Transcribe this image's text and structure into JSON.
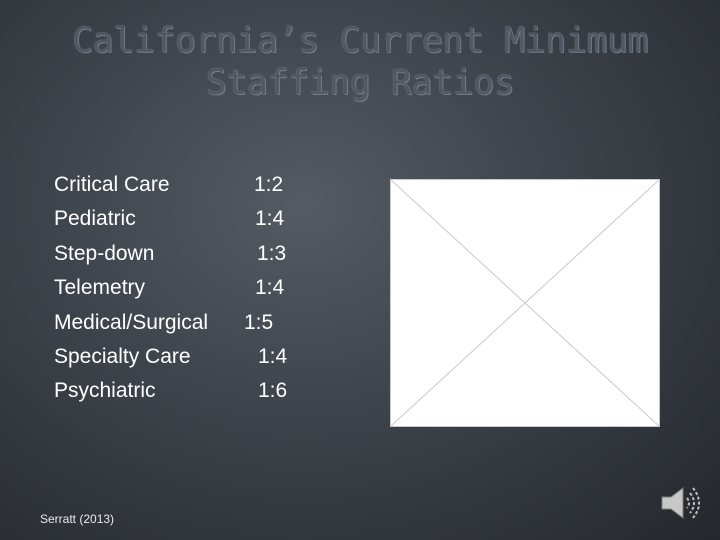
{
  "slide": {
    "title_line1": "California’s Current Minimum",
    "title_line2": "Staffing Ratios",
    "ratios": [
      {
        "unit": "Critical Care",
        "ratio": "1:2"
      },
      {
        "unit": "Pediatric",
        "ratio": "1:4"
      },
      {
        "unit": "Step-down",
        "ratio": "1:3"
      },
      {
        "unit": "Telemetry",
        "ratio": "1:4"
      },
      {
        "unit": "Medical/Surgical",
        "ratio": "1:5"
      },
      {
        "unit": "Specialty Care",
        "ratio": "1:4"
      },
      {
        "unit": "Psychiatric",
        "ratio": "1:6"
      }
    ],
    "citation": "Serratt (2013)"
  },
  "icons": {
    "image_placeholder": "missing-image-icon",
    "audio": "speaker-icon"
  },
  "colors": {
    "title": "#4f5863",
    "body_text": "#ffffff"
  }
}
